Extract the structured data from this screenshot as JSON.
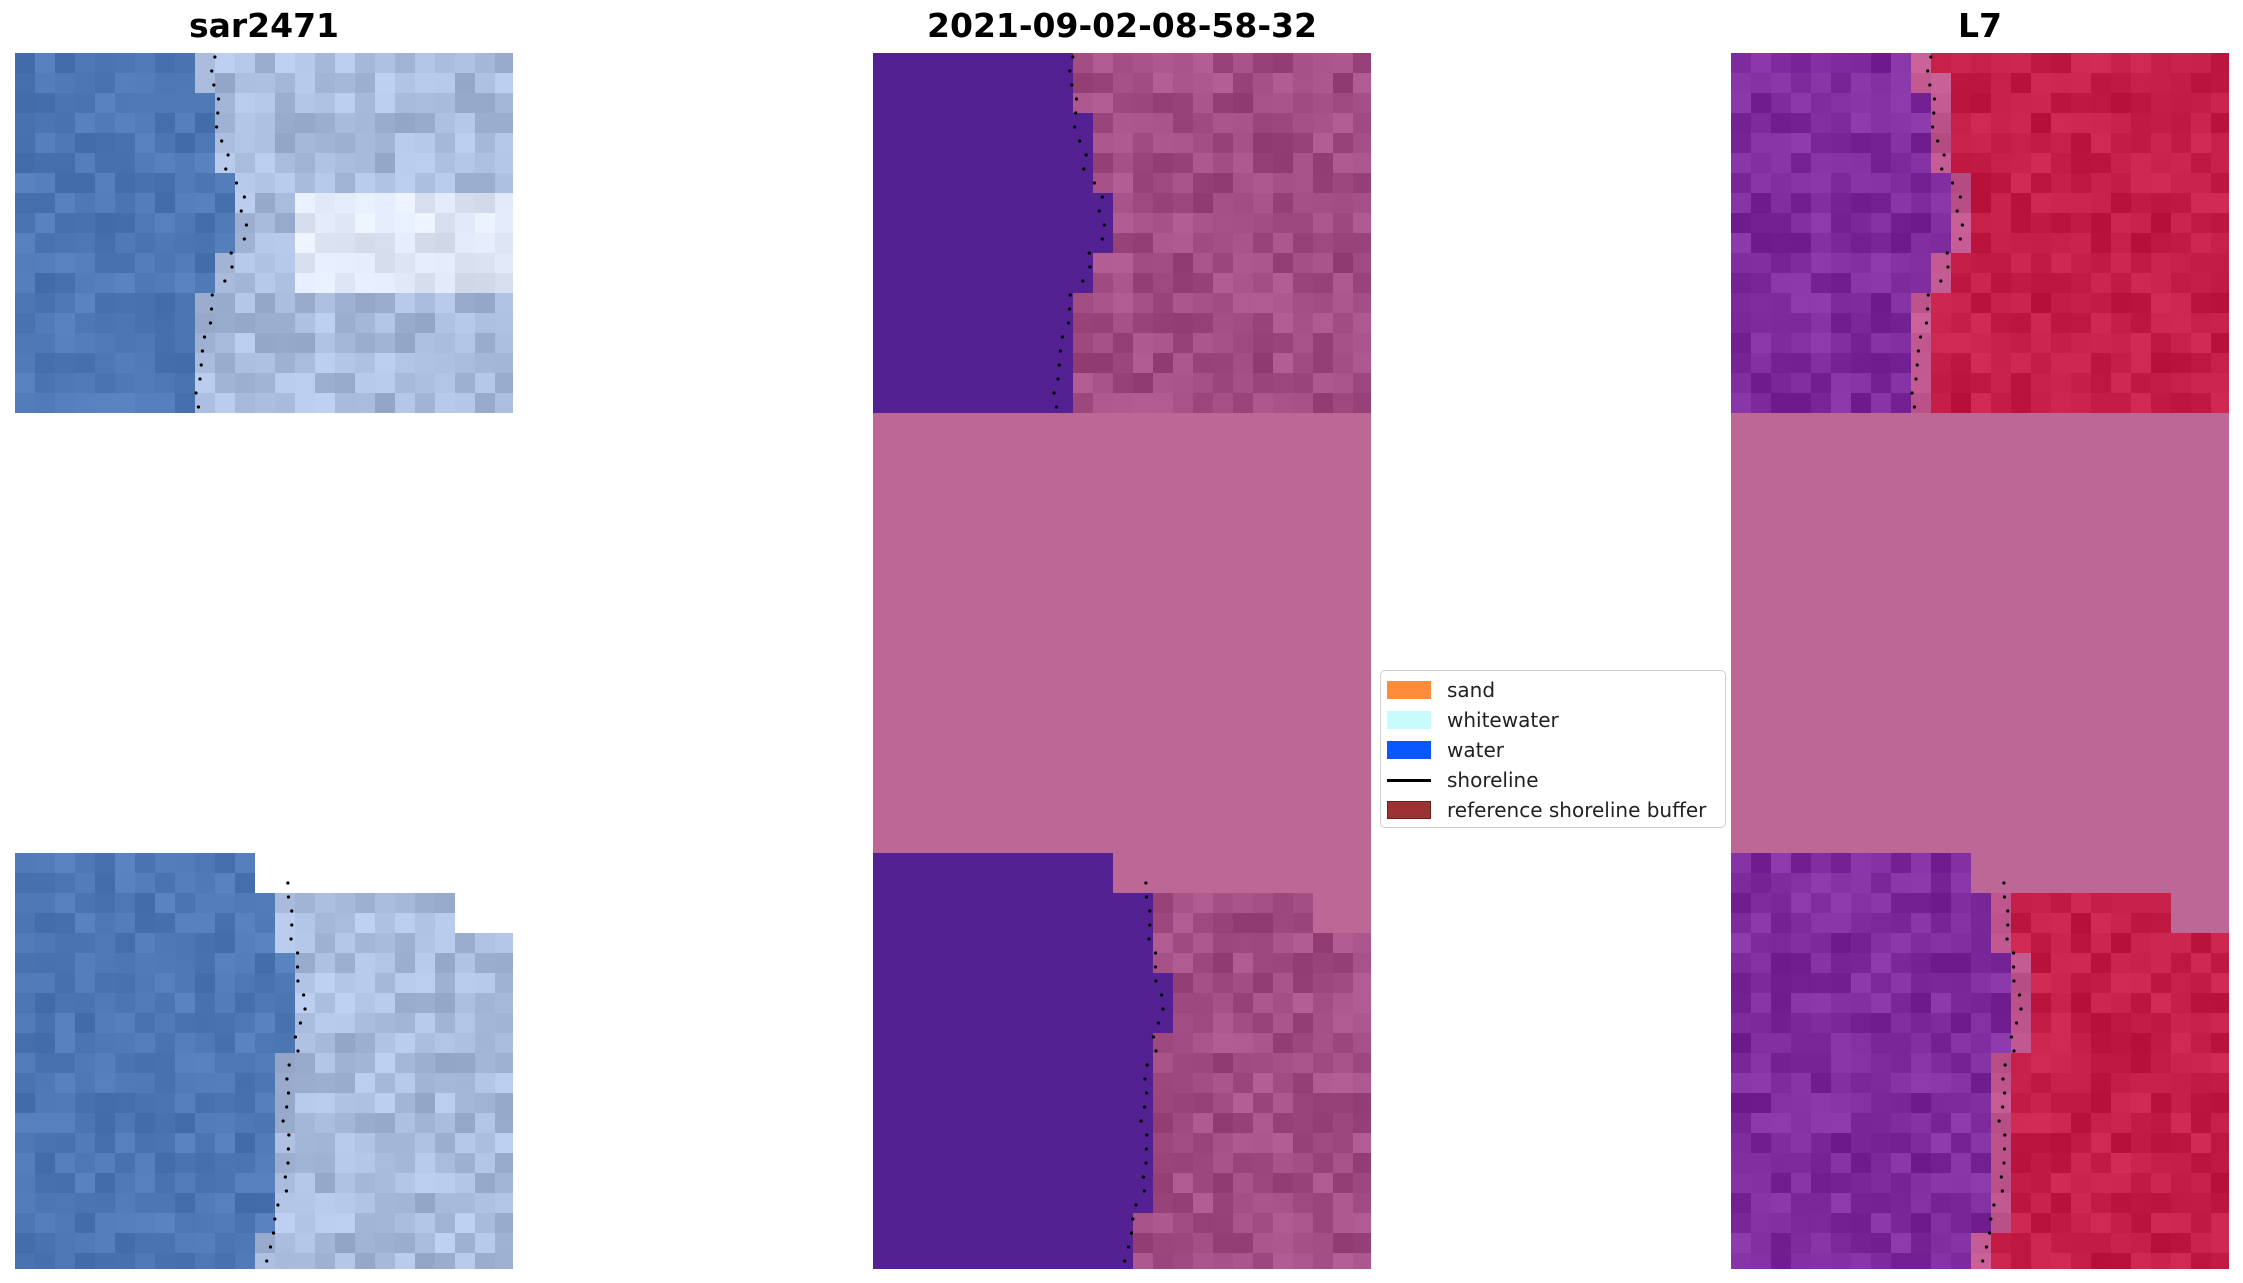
{
  "panels": {
    "left": {
      "title": "sar2471"
    },
    "middle": {
      "title": "2021-09-02-08-58-32"
    },
    "right": {
      "title": "L7"
    }
  },
  "legend": {
    "items": [
      {
        "label": "sand",
        "color": "#ff8c3d",
        "kind": "patch"
      },
      {
        "label": "whitewater",
        "color": "#c8fbfb",
        "kind": "patch"
      },
      {
        "label": "water",
        "color": "#0a56ff",
        "kind": "patch"
      },
      {
        "label": "shoreline",
        "color": "#000000",
        "kind": "line"
      },
      {
        "label": "reference shoreline buffer",
        "color": "#9b3333",
        "kind": "patch-edged"
      }
    ]
  },
  "colors": {
    "nodata_fill": "#bd6796",
    "mndwi_water": "#532192",
    "rgb_water": "#4d78b3",
    "rgb_land": "#a9bbdc",
    "mndwi_land": "#a24c84",
    "l7_water": "#7d2a9c",
    "l7_land": "#c41e46"
  }
}
